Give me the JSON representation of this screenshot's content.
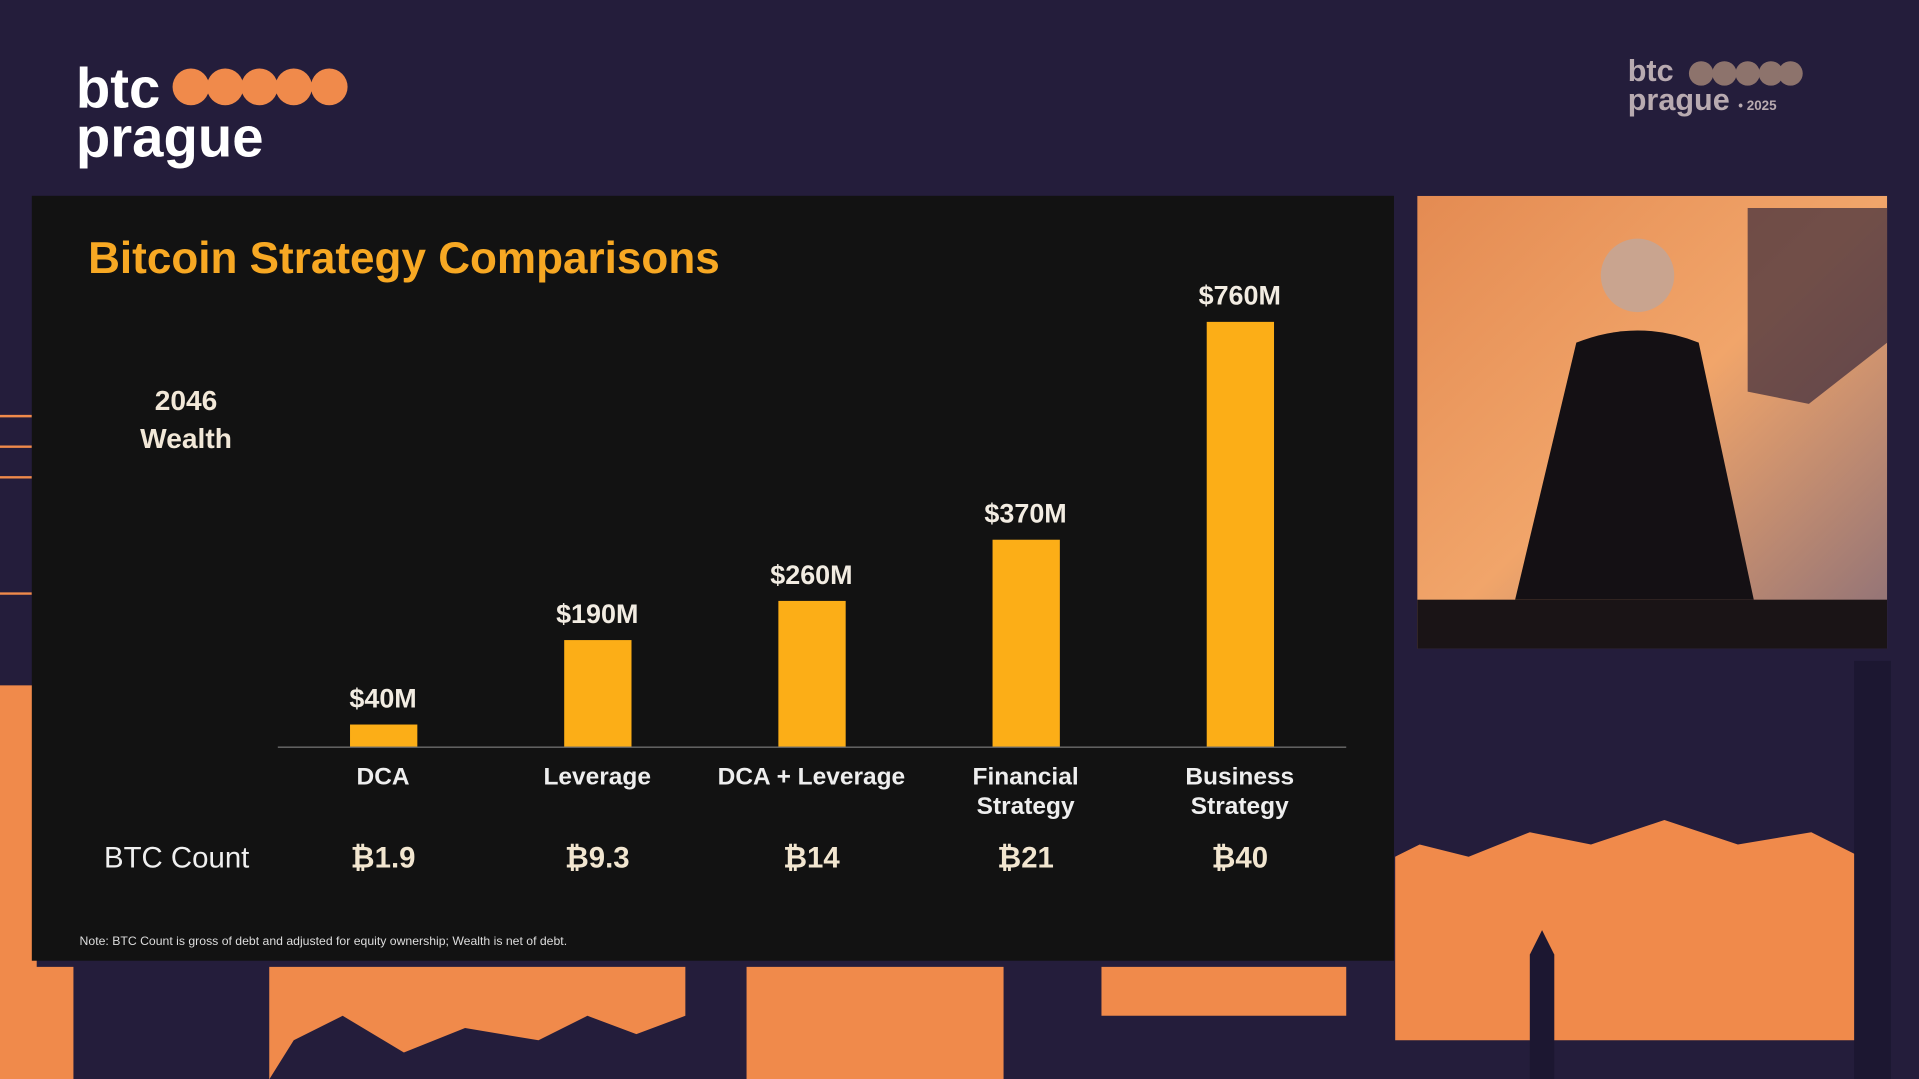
{
  "logo": {
    "line1": "btc",
    "line2": "prague"
  },
  "corner_logo": {
    "line1": "btc",
    "line2": "prague",
    "year": "• 2025"
  },
  "chart_data": {
    "type": "bar",
    "title": "Bitcoin Strategy Comparisons",
    "y_label": "2046 Wealth",
    "categories": [
      "DCA",
      "Leverage",
      "DCA + Leverage",
      "Financial Strategy",
      "Business Strategy"
    ],
    "values": [
      40,
      190,
      260,
      370,
      760
    ],
    "value_labels": [
      "$40M",
      "$190M",
      "$260M",
      "$370M",
      "$760M"
    ],
    "color": "#fcae17"
  },
  "btc_count": {
    "label": "BTC Count",
    "values": [
      1.9,
      9.3,
      14,
      21,
      40
    ],
    "value_labels": [
      "₿1.9",
      "₿9.3",
      "₿14",
      "₿21",
      "₿40"
    ]
  },
  "note": "Note: BTC Count is gross of debt and adjusted for equity ownership; Wealth is net of debt."
}
